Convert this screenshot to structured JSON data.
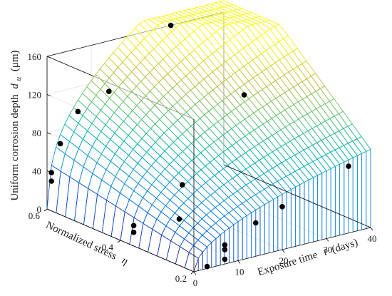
{
  "chart_data": {
    "type": "surface3d",
    "title": "",
    "xlabel": "Exposure time",
    "xlabel_symbol": "t",
    "xlabel_unit": "(days)",
    "ylabel": "Normalized stress",
    "ylabel_symbol": "η",
    "zlabel": "Uniform corrosion depth",
    "zlabel_symbol": "d",
    "zlabel_subscript": "u",
    "zlabel_unit": "(μm)",
    "xlim": [
      0,
      40
    ],
    "ylim": [
      0.2,
      0.6
    ],
    "zlim": [
      0,
      160
    ],
    "x_ticks": [
      0,
      10,
      20,
      30,
      40
    ],
    "y_ticks": [
      0.2,
      0.4,
      0.6
    ],
    "z_ticks": [
      0,
      40,
      80,
      120,
      160
    ],
    "x_tick_labels": [
      "0",
      "10",
      "20",
      "30",
      "40"
    ],
    "y_tick_labels": [
      "0.2",
      "0.4",
      "0.6"
    ],
    "z_tick_labels": [
      "0",
      "40",
      "80",
      "120",
      "160"
    ],
    "grid": true,
    "colormap": "parula",
    "surface_mesh": {
      "x_steps": 40,
      "y_steps": 16
    },
    "points": [
      {
        "t": 7,
        "eta": 0.2,
        "d": 15
      },
      {
        "t": 7,
        "eta": 0.2,
        "d": 20
      },
      {
        "t": 20,
        "eta": 0.2,
        "d": 45
      },
      {
        "t": 35,
        "eta": 0.2,
        "d": 70
      },
      {
        "t": 3,
        "eta": 0.4,
        "d": 5
      },
      {
        "t": 3,
        "eta": 0.4,
        "d": 12
      },
      {
        "t": 14,
        "eta": 0.4,
        "d": 42
      },
      {
        "t": 28,
        "eta": 0.4,
        "d": 120
      },
      {
        "t": 1,
        "eta": 0.6,
        "d": 28
      },
      {
        "t": 1,
        "eta": 0.6,
        "d": 37
      },
      {
        "t": 3,
        "eta": 0.6,
        "d": 65
      },
      {
        "t": 7,
        "eta": 0.6,
        "d": 94
      },
      {
        "t": 14,
        "eta": 0.6,
        "d": 107
      },
      {
        "t": 28,
        "eta": 0.6,
        "d": 160
      },
      {
        "t": 7,
        "eta": 0.2,
        "d": 5
      },
      {
        "t": 14,
        "eta": 0.2,
        "d": 35
      },
      {
        "t": 3,
        "eta": 0.2,
        "d": 2
      },
      {
        "t": 5,
        "eta": 0.3,
        "d": 33
      }
    ],
    "point_color": "#000000"
  }
}
